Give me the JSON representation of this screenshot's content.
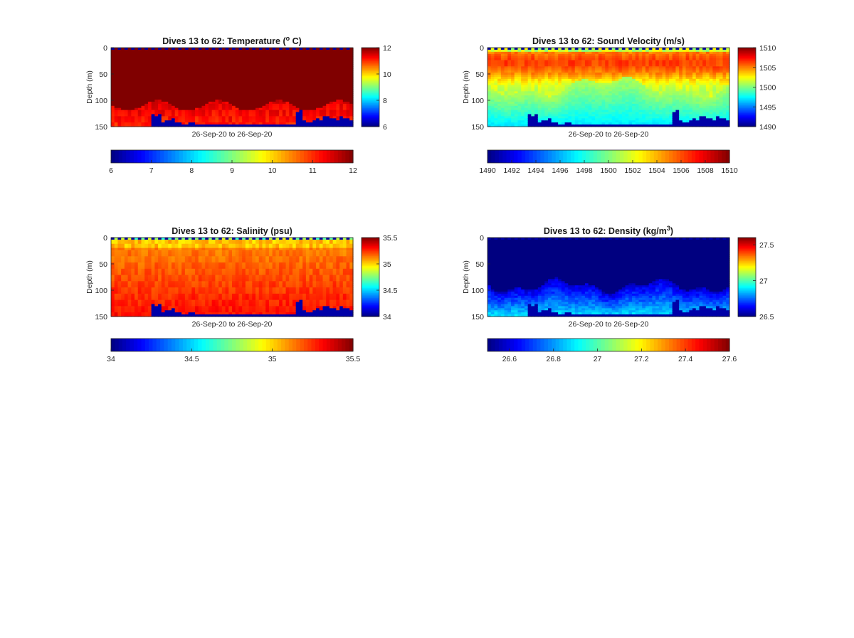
{
  "chart_data": [
    {
      "type": "heatmap",
      "title_prefix": "Dives 13 to 62: Temperature (",
      "title_sup": "o",
      "title_suffix": " C)",
      "ylabel": "Depth (m)",
      "xlabel": "26-Sep-20 to 26-Sep-20",
      "ylim": [
        0,
        150
      ],
      "yticks": [
        "0",
        "50",
        "100",
        "150"
      ],
      "clim": [
        6,
        12
      ],
      "colorbar_right_ticks": [
        "12",
        "10",
        "8",
        "6"
      ],
      "colorbar_bottom_ticks": [
        "6",
        "7",
        "8",
        "9",
        "10",
        "11",
        "12"
      ],
      "field": "temperature"
    },
    {
      "type": "heatmap",
      "title_prefix": "Dives 13 to 62: Sound Velocity (m/s)",
      "title_sup": "",
      "title_suffix": "",
      "ylabel": "Depth (m)",
      "xlabel": "26-Sep-20 to 26-Sep-20",
      "ylim": [
        0,
        150
      ],
      "yticks": [
        "0",
        "50",
        "100",
        "150"
      ],
      "clim": [
        1490,
        1510
      ],
      "colorbar_right_ticks": [
        "1510",
        "1505",
        "1500",
        "1495",
        "1490"
      ],
      "colorbar_bottom_ticks": [
        "1490",
        "1492",
        "1494",
        "1496",
        "1498",
        "1500",
        "1502",
        "1504",
        "1506",
        "1508",
        "1510"
      ],
      "field": "sound_velocity"
    },
    {
      "type": "heatmap",
      "title_prefix": "Dives 13 to 62: Salinity (psu)",
      "title_sup": "",
      "title_suffix": "",
      "ylabel": "Depth (m)",
      "xlabel": "26-Sep-20 to 26-Sep-20",
      "ylim": [
        0,
        150
      ],
      "yticks": [
        "0",
        "50",
        "100",
        "150"
      ],
      "clim": [
        34,
        35.5
      ],
      "colorbar_right_ticks": [
        "35.5",
        "35",
        "34.5",
        "34"
      ],
      "colorbar_bottom_ticks": [
        "34",
        "34.5",
        "35",
        "35.5"
      ],
      "field": "salinity"
    },
    {
      "type": "heatmap",
      "title_prefix": "Dives 13 to 62: Density (kg/m",
      "title_sup": "3",
      "title_suffix": ")",
      "ylabel": "Depth (m)",
      "xlabel": "26-Sep-20 to 26-Sep-20",
      "ylim": [
        0,
        150
      ],
      "yticks": [
        "0",
        "50",
        "100",
        "150"
      ],
      "clim": [
        26.5,
        27.6
      ],
      "colorbar_right_ticks": [
        "27.5",
        "27",
        "26.5"
      ],
      "colorbar_bottom_ticks": [
        "26.6",
        "26.8",
        "27",
        "27.2",
        "27.4",
        "27.6"
      ],
      "field": "density"
    }
  ]
}
